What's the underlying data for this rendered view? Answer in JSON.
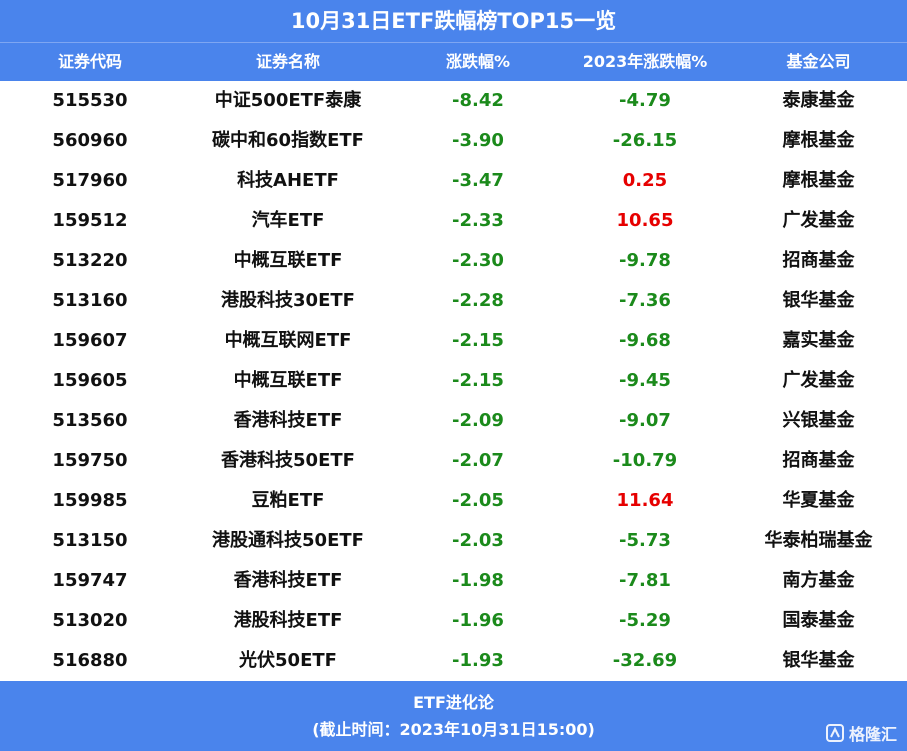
{
  "title": "10月31日ETF跌幅榜TOP15一览",
  "table": {
    "header": [
      "证券代码",
      "证券名称",
      "涨跌幅%",
      "2023年涨跌幅%",
      "基金公司"
    ],
    "rows": [
      [
        "515530",
        "中证500ETF泰康",
        "-8.42",
        "-4.79",
        "泰康基金"
      ],
      [
        "560960",
        "碳中和60指数ETF",
        "-3.90",
        "-26.15",
        "摩根基金"
      ],
      [
        "517960",
        "科技AHETF",
        "-3.47",
        "0.25",
        "摩根基金"
      ],
      [
        "159512",
        "汽车ETF",
        "-2.33",
        "10.65",
        "广发基金"
      ],
      [
        "513220",
        "中概互联ETF",
        "-2.30",
        "-9.78",
        "招商基金"
      ],
      [
        "513160",
        "港股科技30ETF",
        "-2.28",
        "-7.36",
        "银华基金"
      ],
      [
        "159607",
        "中概互联网ETF",
        "-2.15",
        "-9.68",
        "嘉实基金"
      ],
      [
        "159605",
        "中概互联ETF",
        "-2.15",
        "-9.45",
        "广发基金"
      ],
      [
        "513560",
        "香港科技ETF",
        "-2.09",
        "-9.07",
        "兴银基金"
      ],
      [
        "159750",
        "香港科技50ETF",
        "-2.07",
        "-10.79",
        "招商基金"
      ],
      [
        "159985",
        "豆粕ETF",
        "-2.05",
        "11.64",
        "华夏基金"
      ],
      [
        "513150",
        "港股通科技50ETF",
        "-2.03",
        "-5.73",
        "华泰柏瑞基金"
      ],
      [
        "159747",
        "香港科技ETF",
        "-1.98",
        "-7.81",
        "南方基金"
      ],
      [
        "513020",
        "港股科技ETF",
        "-1.96",
        "-5.29",
        "国泰基金"
      ],
      [
        "516880",
        "光伏50ETF",
        "-1.93",
        "-32.69",
        "银华基金"
      ]
    ],
    "colors": {
      "down": "#1b8a1b",
      "up": "#e60000"
    }
  },
  "footer": {
    "source": "ETF进化论",
    "note": "(截止时间：2023年10月31日15:00)"
  },
  "watermark": "格隆汇"
}
